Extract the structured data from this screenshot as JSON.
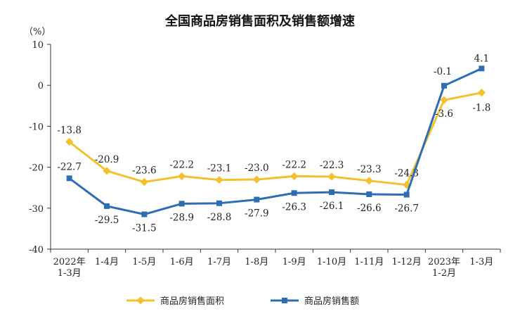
{
  "chart_data": {
    "type": "line",
    "title": "全国商品房销售面积及销售额增速",
    "unit_label": "（%）",
    "categories": [
      [
        "2022年",
        "1-3月"
      ],
      [
        "1-4月"
      ],
      [
        "1-5月"
      ],
      [
        "1-6月"
      ],
      [
        "1-7月"
      ],
      [
        "1-8月"
      ],
      [
        "1-9月"
      ],
      [
        "1-10月"
      ],
      [
        "1-11月"
      ],
      [
        "1-12月"
      ],
      [
        "2023年",
        "1-2月"
      ],
      [
        "1-3月"
      ]
    ],
    "ylim": [
      -40,
      10
    ],
    "yticks": [
      10,
      0,
      -10,
      -20,
      -30,
      -40
    ],
    "grid": false,
    "legend_position": "bottom",
    "series": [
      {
        "name": "商品房销售面积",
        "color": "#f2c12e",
        "values": [
          -13.8,
          -20.9,
          -23.6,
          -22.2,
          -23.1,
          -23.0,
          -22.2,
          -22.3,
          -23.3,
          -24.3,
          -3.6,
          -1.8
        ],
        "labels": [
          "-13.8",
          "-20.9",
          "-23.6",
          "-22.2",
          "-23.1",
          "-23.0",
          "-22.2",
          "-22.3",
          "-23.3",
          "-24.3",
          "-3.6",
          "-1.8"
        ]
      },
      {
        "name": "商品房销售额",
        "color": "#2e6db4",
        "values": [
          -22.7,
          -29.5,
          -31.5,
          -28.9,
          -28.8,
          -27.9,
          -26.3,
          -26.1,
          -26.6,
          -26.7,
          -0.1,
          4.1
        ],
        "labels": [
          "-22.7",
          "-29.5",
          "-31.5",
          "-28.9",
          "-28.8",
          "-27.9",
          "-26.3",
          "-26.1",
          "-26.6",
          "-26.7",
          "-0.1",
          "4.1"
        ]
      }
    ]
  }
}
